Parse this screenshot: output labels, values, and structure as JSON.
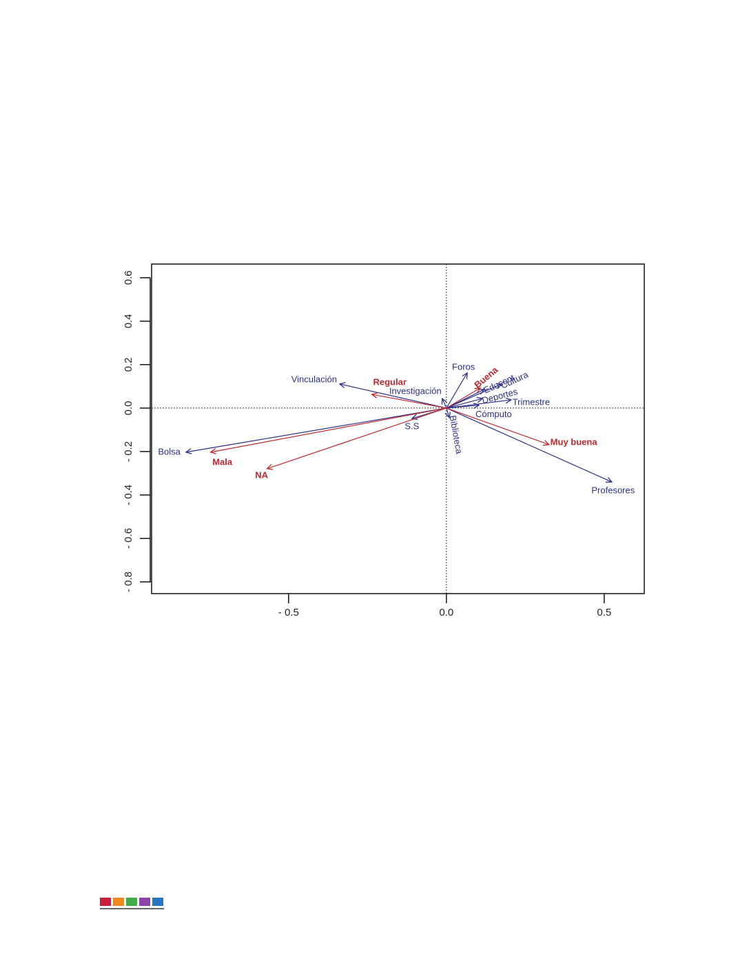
{
  "chart_data": {
    "type": "biplot",
    "xlim": [
      -0.934,
      0.627
    ],
    "ylim": [
      -0.854,
      0.663
    ],
    "xticks": [
      {
        "value": -0.5,
        "label": "- 0.5"
      },
      {
        "value": 0,
        "label": "0.0"
      },
      0.5
    ],
    "yticks": [
      0.6,
      0.4,
      0.2,
      {
        "value": 0,
        "label": "0.0"
      },
      {
        "value": -0.2,
        "label": "- 0.2"
      },
      {
        "value": -0.4,
        "label": "- 0.4"
      },
      {
        "value": -0.6,
        "label": "- 0.6"
      },
      {
        "value": -0.8,
        "label": "- 0.8"
      }
    ],
    "series": [
      {
        "color": "#2b2f8a",
        "labels": [
          "Vinculación",
          "Investigación",
          "Foros",
          "Educont",
          "Cultura",
          "Deportes",
          "Trimestre",
          "Cómputo",
          "Biblioteca",
          "S.S",
          "Bolsa",
          "Profesores"
        ],
        "x": [
          -0.338,
          -0.013,
          0.066,
          0.12,
          0.175,
          0.114,
          0.205,
          0.103,
          0.009,
          -0.109,
          -0.825,
          0.524
        ],
        "y": [
          0.111,
          0.044,
          0.162,
          0.086,
          0.111,
          0.044,
          0.038,
          0.013,
          -0.044,
          -0.048,
          -0.203,
          -0.34
        ]
      },
      {
        "color": "#c0282d",
        "labels": [
          "Regular",
          "Buena",
          "Muy buena",
          "Mala",
          "NA"
        ],
        "x": [
          -0.236,
          0.107,
          0.325,
          -0.747,
          -0.568
        ],
        "y": [
          0.063,
          0.092,
          -0.168,
          -0.203,
          -0.279
        ]
      }
    ]
  }
}
